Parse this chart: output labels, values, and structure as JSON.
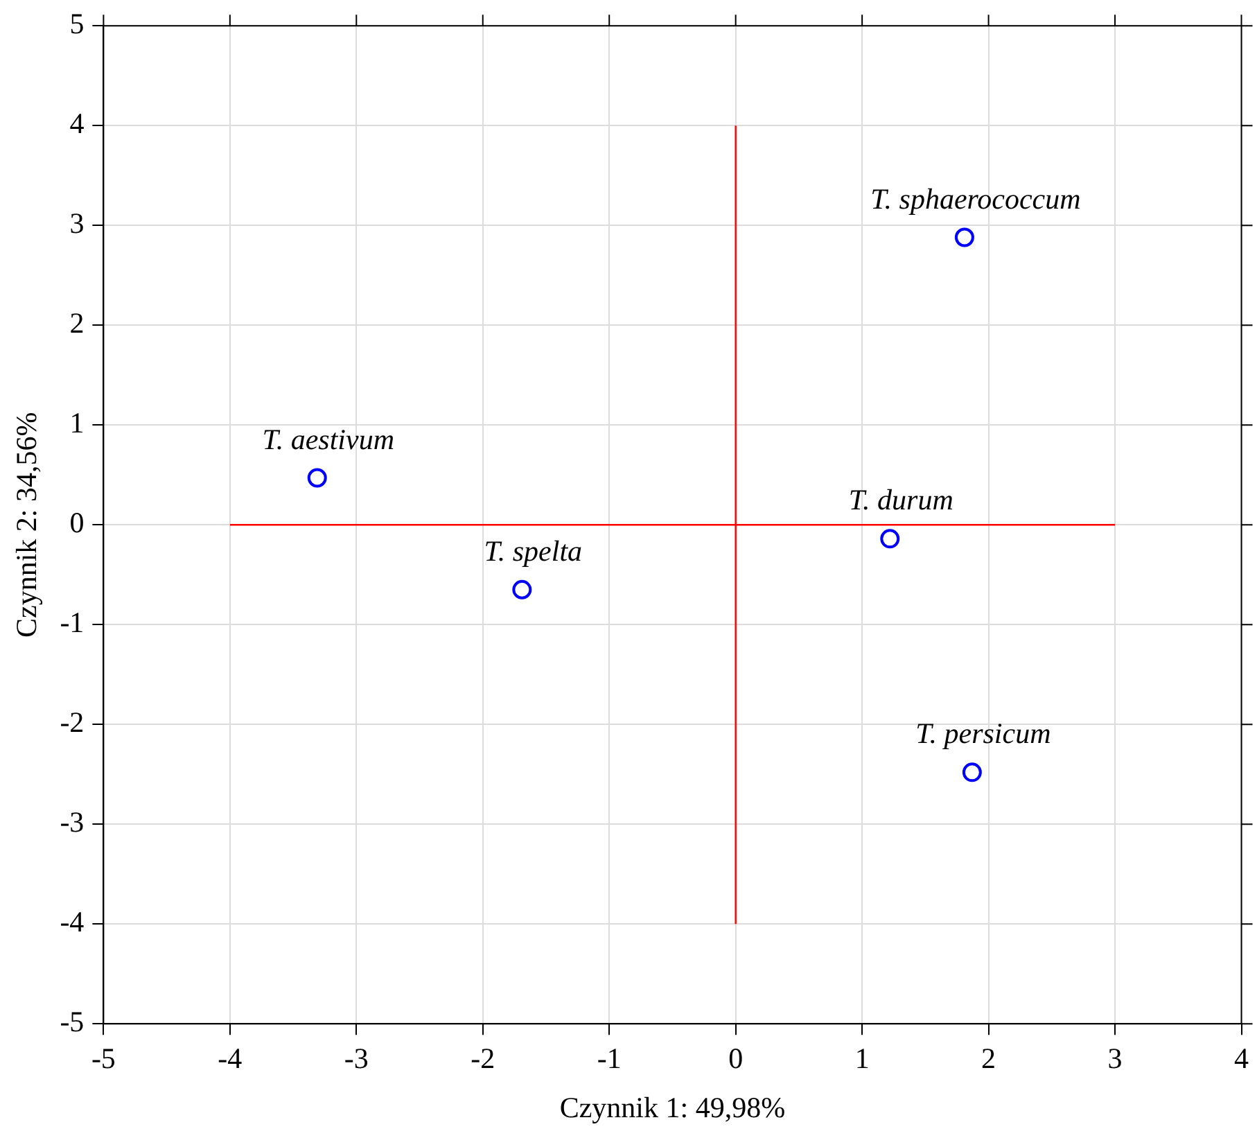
{
  "chart_data": {
    "type": "scatter",
    "xlabel": "Czynnik 1: 49,98%",
    "ylabel": "Czynnik 2: 34,56%",
    "xlim": [
      -5,
      4
    ],
    "xticks": [
      -5,
      -4,
      -3,
      -2,
      -1,
      0,
      1,
      2,
      3,
      4
    ],
    "ylim": [
      -5,
      5
    ],
    "yticks": [
      -5,
      -4,
      -3,
      -2,
      -1,
      0,
      1,
      2,
      3,
      4,
      5
    ],
    "grid": true,
    "legend": false,
    "marker": "circle",
    "series": [
      {
        "name": "T. aestivum",
        "color": "#0000ff",
        "x": [
          -3.31
        ],
        "values": [
          0.47
        ]
      },
      {
        "name": "T. spelta",
        "color": "#0000ff",
        "x": [
          -1.69
        ],
        "values": [
          -0.65
        ]
      },
      {
        "name": "T. durum",
        "color": "#0000ff",
        "x": [
          1.22
        ],
        "values": [
          -0.14
        ]
      },
      {
        "name": "T. sphaerococcum",
        "color": "#0000ff",
        "x": [
          1.81
        ],
        "values": [
          2.88
        ]
      },
      {
        "name": "T. persicum",
        "color": "#0000ff",
        "x": [
          1.87
        ],
        "values": [
          -2.48
        ]
      },
      {
        "type": "line",
        "color": "#ff0000",
        "marker": "none",
        "x": [
          -4,
          3
        ],
        "values": [
          0,
          0
        ]
      },
      {
        "type": "line",
        "color": "#ff0000",
        "marker": "none",
        "x": [
          0,
          0
        ],
        "values": [
          -4,
          4
        ]
      }
    ]
  }
}
